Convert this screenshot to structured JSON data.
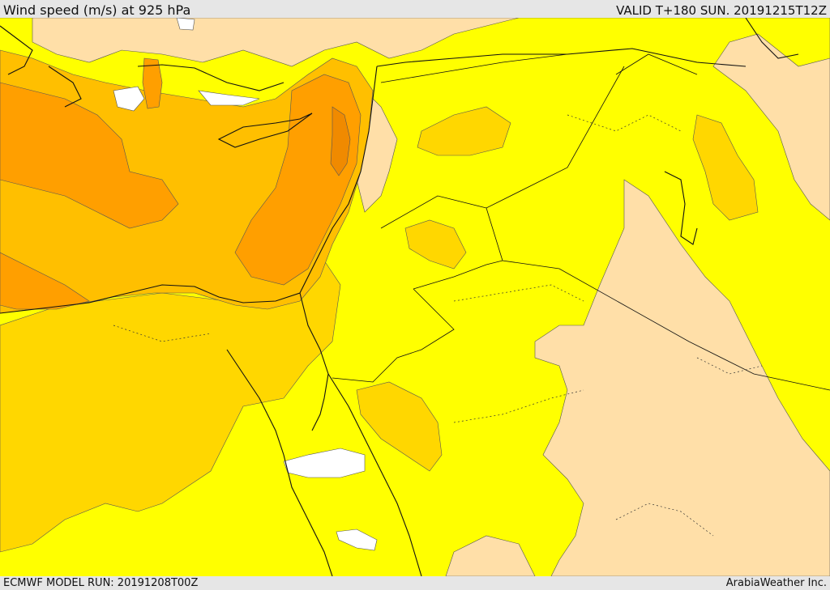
{
  "header": {
    "title": "Wind speed (m/s) at 925 hPa",
    "valid_time": "VALID T+180 SUN. 20191215T12Z"
  },
  "footer": {
    "model_run": "ECMWF MODEL RUN: 20191208T00Z",
    "credit": "ArabiaWeather Inc."
  },
  "map": {
    "variable": "wind speed",
    "level_hPa": 925,
    "fill_colors": {
      "lowest_white": "#ffffff",
      "low_tan": "#ffdfa8",
      "mid_yellow": "#ffff00",
      "gold": "#ffd700",
      "orange_light": "#ffbf00",
      "orange": "#ff9f00",
      "orange_dark": "#f08a00"
    }
  }
}
